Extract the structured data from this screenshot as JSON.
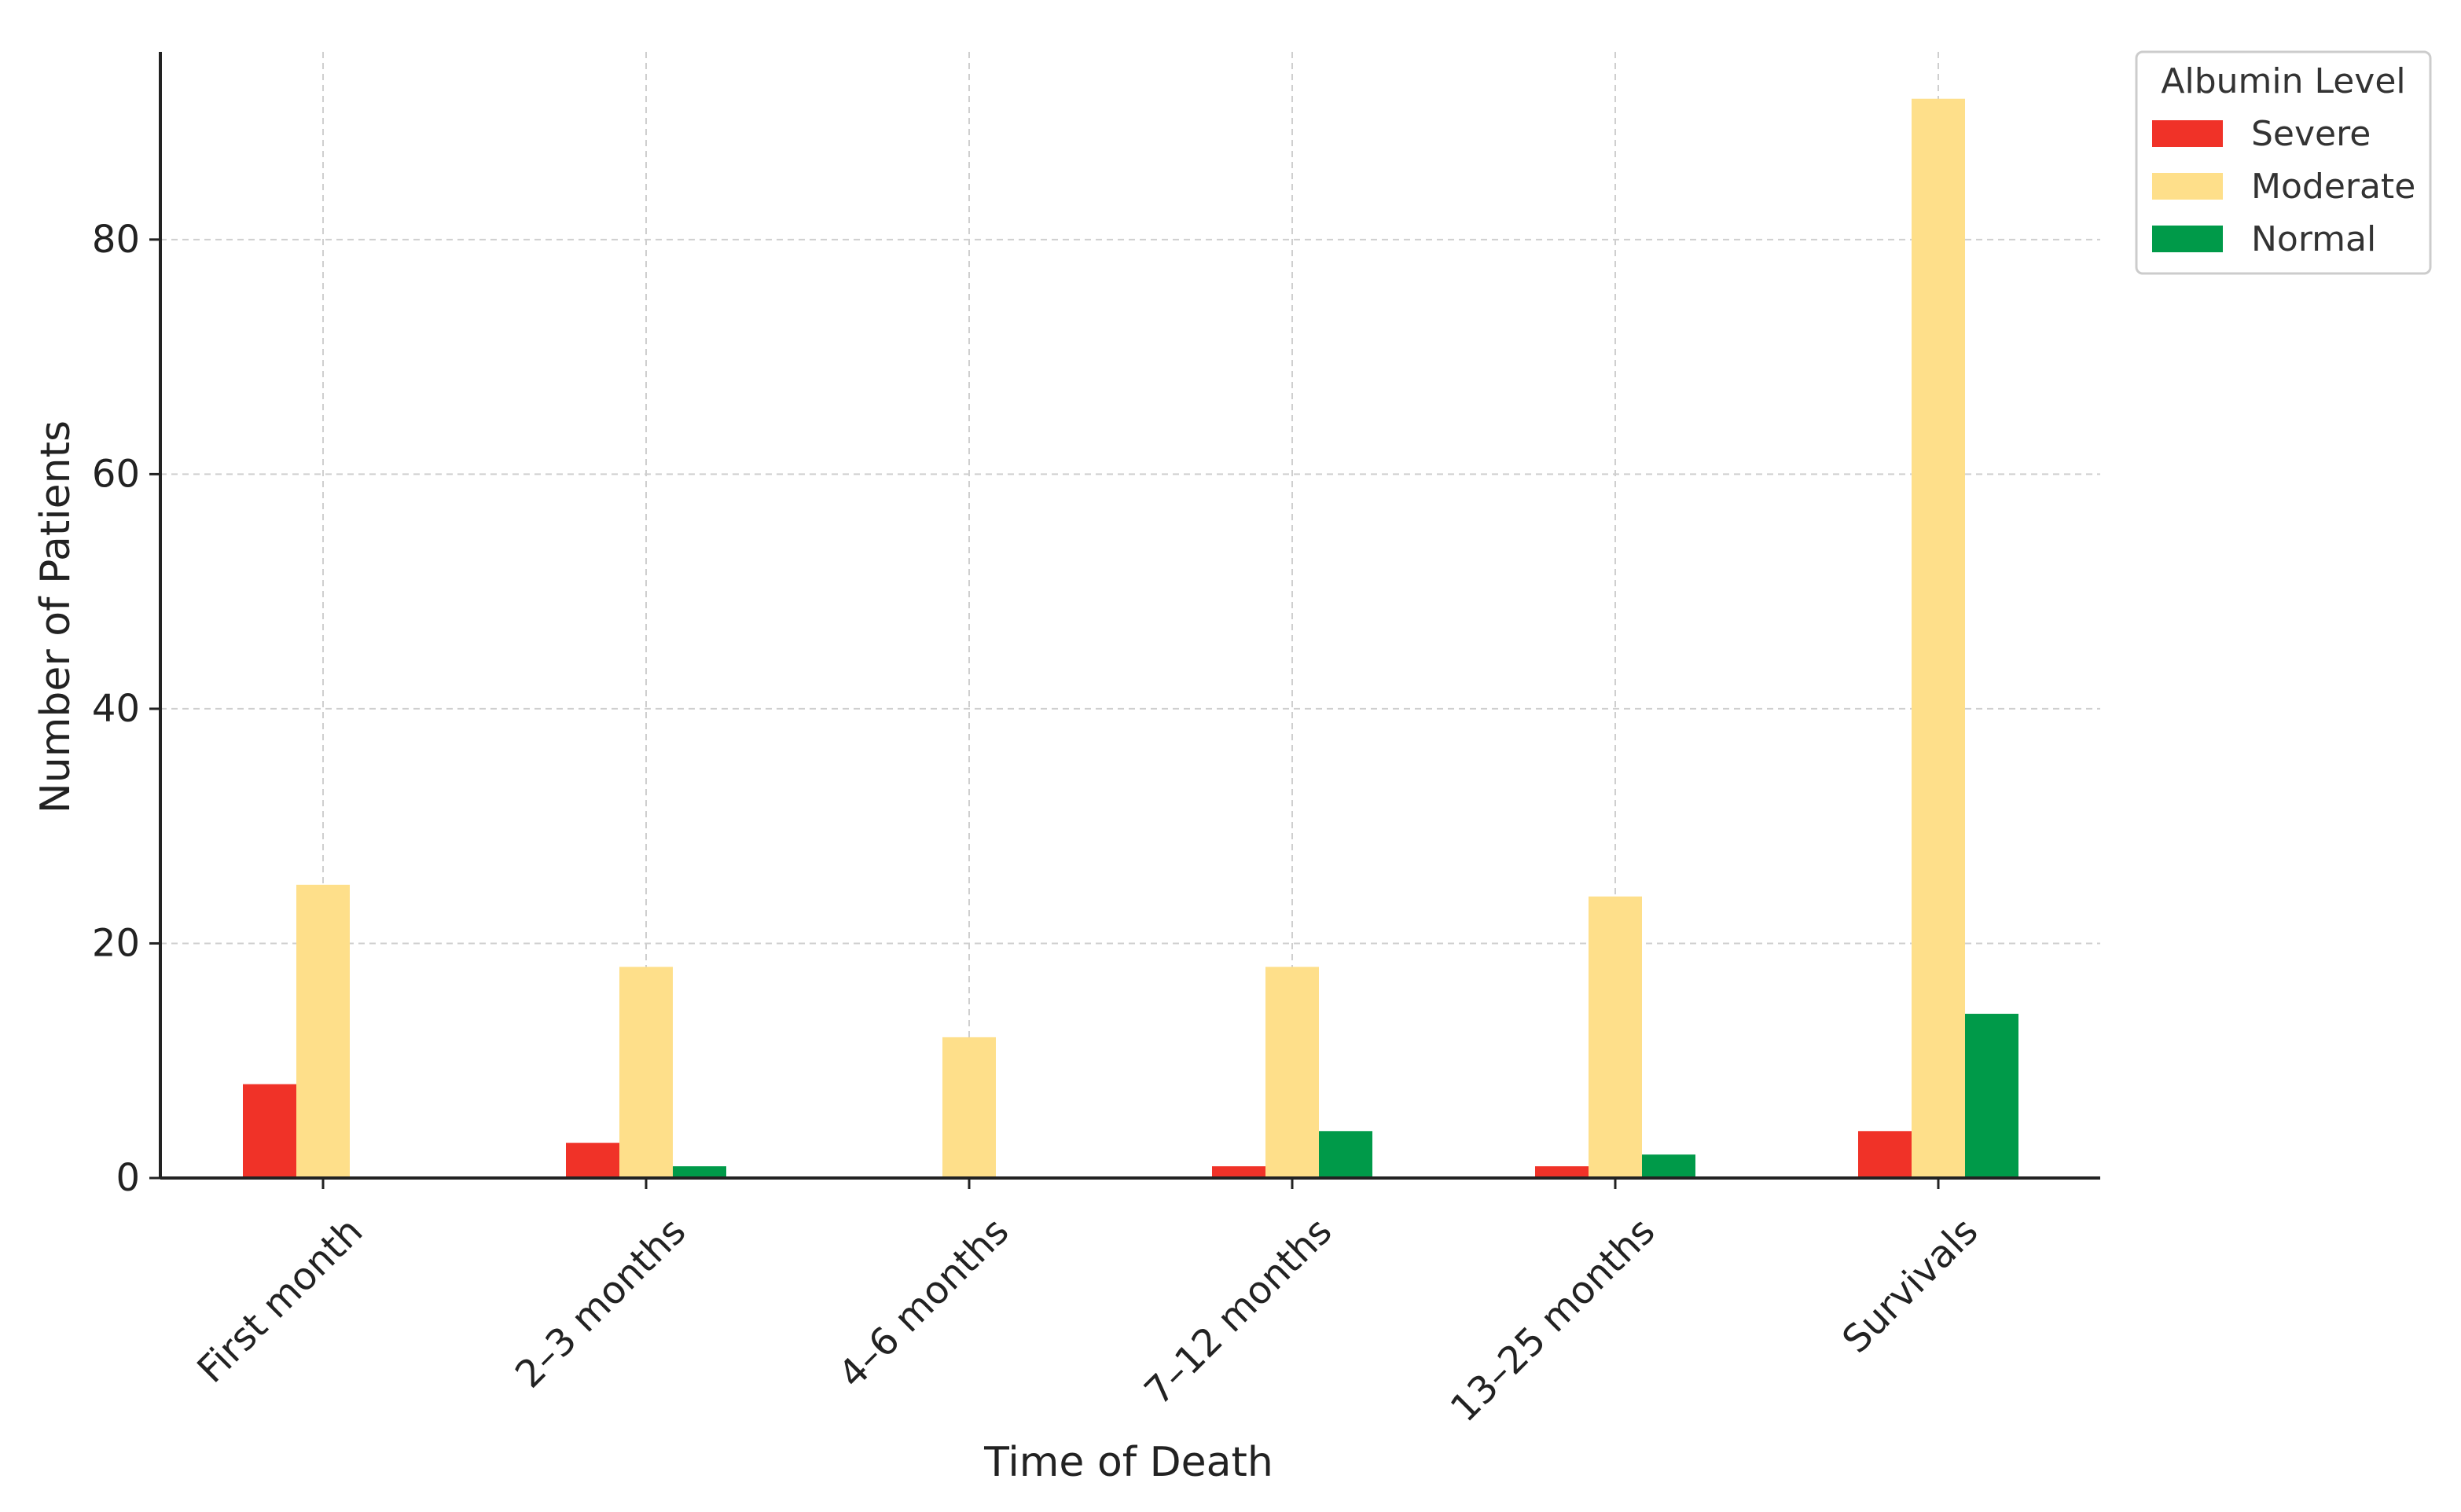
{
  "chart_data": {
    "type": "bar",
    "title": "",
    "xlabel": "Time of Death",
    "ylabel": "Number of Patients",
    "ylim": [
      0,
      96
    ],
    "yticks": [
      0,
      20,
      40,
      60,
      80
    ],
    "grid": true,
    "legend_title": "Albumin Level",
    "legend_position": "outside-top-right",
    "categories": [
      "First month",
      "2–3 months",
      "4–6 months",
      "7–12 months",
      "13–25 months",
      "Survivals"
    ],
    "series": [
      {
        "name": "Severe",
        "color": "#f03228",
        "values": [
          8,
          3,
          0,
          1,
          1,
          4
        ]
      },
      {
        "name": "Moderate",
        "color": "#fedf8a",
        "values": [
          25,
          18,
          12,
          18,
          24,
          92
        ]
      },
      {
        "name": "Normal",
        "color": "#009a49",
        "values": [
          0,
          1,
          0,
          4,
          2,
          14
        ]
      }
    ]
  }
}
